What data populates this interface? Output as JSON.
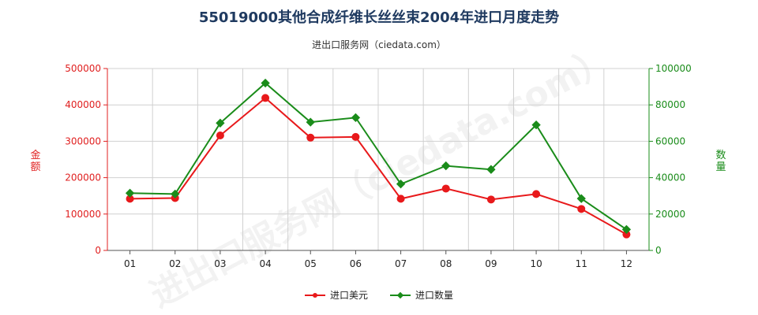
{
  "chart_data": {
    "type": "line",
    "title": "55019000其他合成纤维长丝丝束2004年进口月度走势",
    "subtitle": "进出口服务网（ciedata.com）",
    "categories": [
      "01",
      "02",
      "03",
      "04",
      "05",
      "06",
      "07",
      "08",
      "09",
      "10",
      "11",
      "12"
    ],
    "y_left": {
      "label": "金额",
      "ylim": [
        0,
        500000
      ],
      "ticks": [
        "0",
        "100000",
        "200000",
        "300000",
        "400000",
        "500000"
      ]
    },
    "y_right": {
      "label": "数量",
      "ylim": [
        0,
        100000
      ],
      "ticks": [
        "0",
        "20000",
        "40000",
        "60000",
        "80000",
        "100000"
      ]
    },
    "series": [
      {
        "name": "进口美元",
        "axis": "left",
        "color": "#e8191b",
        "values": [
          142000,
          144000,
          316000,
          419000,
          310000,
          312000,
          142000,
          170000,
          140000,
          155000,
          114000,
          44000
        ]
      },
      {
        "name": "进口数量",
        "axis": "right",
        "color": "#1a8c1a",
        "values": [
          31500,
          31000,
          70000,
          92000,
          70500,
          73000,
          36500,
          46500,
          44500,
          69000,
          28500,
          11500
        ]
      }
    ],
    "grid": true,
    "legend": "bottom-center"
  }
}
